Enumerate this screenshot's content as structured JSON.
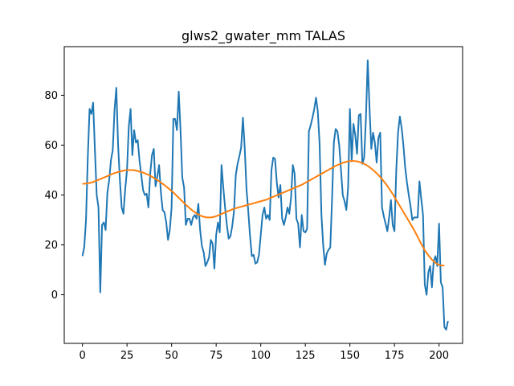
{
  "chart_data": {
    "type": "line",
    "title": "glws2_gwater_mm TALAS",
    "xlabel": "",
    "ylabel": "",
    "xlim": [
      -10.2,
      213.2
    ],
    "ylim": [
      -19.5,
      99.5
    ],
    "grid": false,
    "x_ticks": [
      0,
      25,
      50,
      75,
      100,
      125,
      150,
      175,
      200
    ],
    "y_ticks": [
      0,
      20,
      40,
      60,
      80
    ],
    "colors": {
      "series_0": "#1f77b4",
      "series_1": "#ff7f0e"
    },
    "series": [
      {
        "x_start": 0,
        "values": [
          15.5,
          19,
          30,
          55,
          74.5,
          72.5,
          77,
          58,
          40,
          35,
          1,
          28,
          29,
          26,
          41,
          46,
          54,
          58,
          74,
          83,
          60,
          46,
          35,
          32.5,
          42.5,
          50,
          67.5,
          74.5,
          56,
          66,
          61,
          62,
          54,
          48,
          42,
          40,
          40.5,
          35,
          48.5,
          56,
          58.5,
          43.5,
          47.5,
          52,
          41,
          34,
          33,
          29,
          22,
          26,
          35,
          70.5,
          70.5,
          66,
          81.5,
          66,
          47,
          43,
          28,
          30.5,
          30.5,
          28,
          31,
          32,
          30.5,
          36.5,
          26,
          19.5,
          17,
          11.5,
          13,
          15,
          22,
          20.5,
          10.5,
          24,
          29,
          25,
          52,
          43,
          35,
          28,
          22.5,
          23.5,
          27.5,
          33.5,
          48,
          52.5,
          55.5,
          59,
          71,
          59,
          42.5,
          33.5,
          23.5,
          15.5,
          16,
          12.5,
          13,
          16,
          24,
          32,
          35,
          30.5,
          32,
          30,
          50,
          55,
          54.5,
          45,
          39,
          44,
          30.5,
          28,
          31,
          35,
          32.5,
          39,
          52,
          48.5,
          30.5,
          28.5,
          19,
          32,
          25.5,
          25,
          26.5,
          65.5,
          68,
          71,
          74.5,
          79,
          73.5,
          60.5,
          32.5,
          20,
          12,
          16.5,
          18,
          19,
          38.5,
          61,
          66.5,
          65.5,
          60,
          50,
          40,
          37.5,
          34,
          43,
          74.5,
          53.5,
          68.5,
          64,
          56.5,
          72,
          72.5,
          52.5,
          55,
          71,
          94,
          75,
          58.5,
          65,
          61,
          53,
          63,
          65,
          35,
          31.5,
          28.5,
          25.5,
          31,
          38,
          28,
          25.5,
          50,
          65,
          71.5,
          67,
          60,
          51,
          45,
          40,
          35.5,
          30,
          31,
          31,
          31,
          45.5,
          38.5,
          32,
          4,
          0,
          9,
          11.5,
          3,
          13.5,
          15.5,
          11.5,
          28.5,
          5,
          3,
          -13,
          -14,
          -10.5
        ]
      },
      {
        "x_start": 0,
        "values": [
          44.5,
          44.5,
          44.6,
          44.7,
          44.8,
          45,
          45.2,
          45.5,
          45.8,
          46.1,
          46.4,
          46.7,
          47,
          47.3,
          47.6,
          47.9,
          48.2,
          48.5,
          48.8,
          49,
          49.2,
          49.4,
          49.6,
          49.8,
          49.9,
          50,
          50,
          50,
          50,
          49.9,
          49.8,
          49.6,
          49.4,
          49.2,
          49,
          48.7,
          48.4,
          48.1,
          47.7,
          47.3,
          46.9,
          46.5,
          46,
          45.5,
          45,
          44.5,
          44,
          43.4,
          42.8,
          42.2,
          41.6,
          41,
          40.3,
          39.6,
          38.9,
          38.2,
          37.5,
          36.8,
          36.1,
          35.4,
          34.8,
          34.2,
          33.6,
          33.1,
          32.6,
          32.2,
          31.8,
          31.5,
          31.3,
          31.1,
          31,
          31,
          31,
          31.1,
          31.3,
          31.5,
          31.8,
          32.1,
          32.4,
          32.7,
          33,
          33.3,
          33.6,
          33.9,
          34.2,
          34.5,
          34.7,
          34.9,
          35.1,
          35.3,
          35.5,
          35.7,
          35.9,
          36.1,
          36.3,
          36.5,
          36.7,
          36.9,
          37.1,
          37.3,
          37.5,
          37.7,
          37.9,
          38.1,
          38.4,
          38.7,
          39,
          39.3,
          39.6,
          39.9,
          40.2,
          40.5,
          40.8,
          41.1,
          41.4,
          41.7,
          42,
          42.3,
          42.6,
          42.9,
          43.2,
          43.5,
          43.8,
          44.1,
          44.5,
          44.9,
          45.3,
          45.7,
          46.1,
          46.5,
          46.9,
          47.3,
          47.7,
          48.1,
          48.5,
          48.9,
          49.3,
          49.7,
          50.1,
          50.5,
          50.9,
          51.3,
          51.7,
          52,
          52.3,
          52.6,
          52.9,
          53.1,
          53.3,
          53.5,
          53.6,
          53.7,
          53.7,
          53.6,
          53.5,
          53.3,
          53.1,
          52.8,
          52.5,
          52.1,
          51.7,
          51.2,
          50.6,
          50,
          49.4,
          48.7,
          48,
          47.2,
          46.4,
          45.5,
          44.6,
          43.6,
          42.6,
          41.5,
          40.4,
          39.2,
          38,
          36.8,
          35.6,
          34.4,
          33.2,
          32,
          30.8,
          29.6,
          28.4,
          27.2,
          26,
          24.6,
          23.2,
          21.8,
          20.4,
          19.1,
          17.9,
          16.8,
          15.8,
          14.9,
          14.1,
          13.4,
          12.8,
          12.3,
          12,
          11.8,
          11.7,
          11.7
        ]
      }
    ]
  }
}
